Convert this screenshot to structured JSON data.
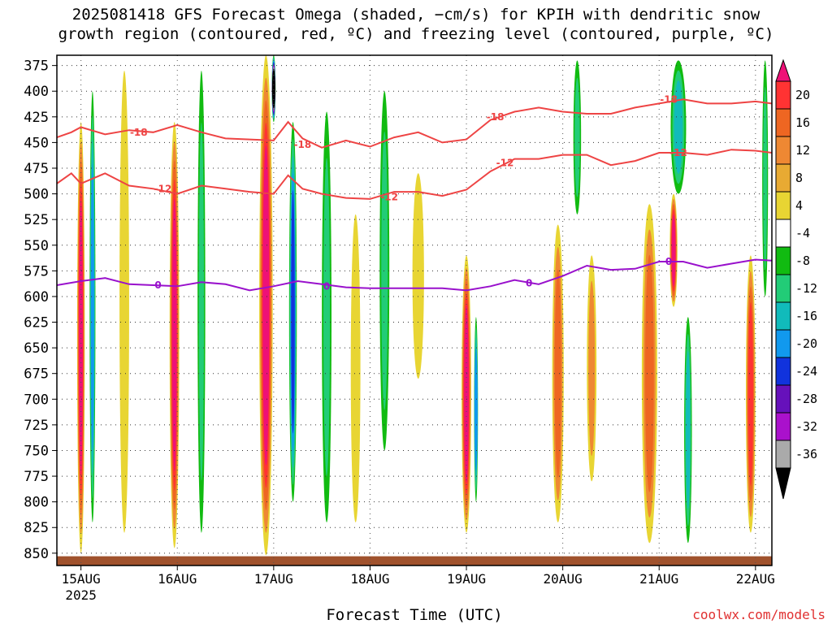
{
  "title_lines": [
    "2025081418 GFS Forecast Omega (shaded, −cm/s) for KPIH with dendritic snow",
    "growth region (contoured, red, ºC) and freezing level (contoured, purple, ºC)"
  ],
  "credit": "coolwx.com/models",
  "chart_data": {
    "type": "heatmap",
    "title": "2025081418 GFS Forecast Omega (shaded, −cm/s) for KPIH with dendritic snow growth region (contoured, red, ºC) and freezing level (contoured, purple, ºC)",
    "xlabel": "Forecast Time (UTC)",
    "ylabel": "",
    "x_ticks": [
      "15AUG",
      "16AUG",
      "17AUG",
      "18AUG",
      "19AUG",
      "20AUG",
      "21AUG",
      "22AUG"
    ],
    "x_subtick_label": "2025",
    "x_range_days": [
      -0.25,
      7.17
    ],
    "y_ticks": [
      375,
      400,
      425,
      450,
      475,
      500,
      525,
      550,
      575,
      600,
      625,
      650,
      675,
      700,
      725,
      750,
      775,
      800,
      825,
      850
    ],
    "y_range_hpa": [
      365,
      862
    ],
    "grid": "dotted",
    "colorbar": {
      "ticks": [
        20,
        16,
        12,
        8,
        4,
        -4,
        -8,
        -12,
        -16,
        -20,
        -24,
        -28,
        -32,
        -36
      ],
      "colors": [
        "#ee1177",
        "#ff3333",
        "#ee6622",
        "#ee8833",
        "#e8aa33",
        "#e8d533",
        "#ffffff",
        "#11bb11",
        "#22cc77",
        "#11bbbb",
        "#1199ee",
        "#1133dd",
        "#6611bb",
        "#aa11cc",
        "#aaaaaa",
        "#000000"
      ]
    },
    "contour_labels": {
      "dgz_minus18": "-18",
      "dgz_minus12": "-12",
      "freezing": "0"
    },
    "contours": [
      {
        "label": "-18",
        "color": "#ee4444",
        "points": [
          [
            -0.25,
            445
          ],
          [
            -0.1,
            440
          ],
          [
            0,
            435
          ],
          [
            0.25,
            442
          ],
          [
            0.5,
            438
          ],
          [
            0.75,
            440
          ],
          [
            1,
            433
          ],
          [
            1.25,
            440
          ],
          [
            1.5,
            446
          ],
          [
            1.75,
            447
          ],
          [
            2,
            448
          ],
          [
            2.15,
            430
          ],
          [
            2.3,
            446
          ],
          [
            2.5,
            455
          ],
          [
            2.75,
            448
          ],
          [
            3,
            454
          ],
          [
            3.25,
            445
          ],
          [
            3.5,
            440
          ],
          [
            3.75,
            450
          ],
          [
            4,
            447
          ],
          [
            4.25,
            428
          ],
          [
            4.5,
            420
          ],
          [
            4.75,
            416
          ],
          [
            5,
            420
          ],
          [
            5.25,
            422
          ],
          [
            5.5,
            422
          ],
          [
            5.75,
            416
          ],
          [
            6,
            412
          ],
          [
            6.25,
            408
          ],
          [
            6.5,
            412
          ],
          [
            6.75,
            412
          ],
          [
            7,
            410
          ],
          [
            7.17,
            412
          ]
        ]
      },
      {
        "label": "-12",
        "color": "#ee4444",
        "points": [
          [
            -0.25,
            490
          ],
          [
            -0.1,
            480
          ],
          [
            0,
            490
          ],
          [
            0.25,
            480
          ],
          [
            0.5,
            492
          ],
          [
            0.75,
            495
          ],
          [
            1,
            500
          ],
          [
            1.25,
            492
          ],
          [
            1.5,
            495
          ],
          [
            1.75,
            498
          ],
          [
            2,
            500
          ],
          [
            2.15,
            482
          ],
          [
            2.3,
            495
          ],
          [
            2.5,
            500
          ],
          [
            2.75,
            504
          ],
          [
            3,
            505
          ],
          [
            3.25,
            498
          ],
          [
            3.5,
            498
          ],
          [
            3.75,
            502
          ],
          [
            4,
            496
          ],
          [
            4.25,
            478
          ],
          [
            4.5,
            466
          ],
          [
            4.75,
            466
          ],
          [
            5,
            462
          ],
          [
            5.25,
            462
          ],
          [
            5.5,
            472
          ],
          [
            5.75,
            468
          ],
          [
            6,
            460
          ],
          [
            6.25,
            460
          ],
          [
            6.5,
            462
          ],
          [
            6.75,
            457
          ],
          [
            7,
            458
          ],
          [
            7.17,
            460
          ]
        ]
      },
      {
        "label": "0",
        "color": "#9911cc",
        "points": [
          [
            -0.25,
            589
          ],
          [
            0,
            585
          ],
          [
            0.25,
            582
          ],
          [
            0.5,
            588
          ],
          [
            0.75,
            589
          ],
          [
            1,
            590
          ],
          [
            1.25,
            586
          ],
          [
            1.5,
            588
          ],
          [
            1.75,
            594
          ],
          [
            2,
            590
          ],
          [
            2.25,
            585
          ],
          [
            2.5,
            588
          ],
          [
            2.75,
            591
          ],
          [
            3,
            592
          ],
          [
            3.25,
            592
          ],
          [
            3.5,
            592
          ],
          [
            3.75,
            592
          ],
          [
            4,
            594
          ],
          [
            4.25,
            590
          ],
          [
            4.5,
            584
          ],
          [
            4.75,
            588
          ],
          [
            5,
            580
          ],
          [
            5.25,
            570
          ],
          [
            5.5,
            574
          ],
          [
            5.75,
            573
          ],
          [
            6,
            566
          ],
          [
            6.25,
            566
          ],
          [
            6.5,
            572
          ],
          [
            6.75,
            568
          ],
          [
            7,
            564
          ],
          [
            7.17,
            565
          ]
        ]
      }
    ],
    "omega_features": [
      {
        "x": 0.0,
        "p_top": 430,
        "p_bot": 850,
        "halfwidth": 0.04,
        "max": 20
      },
      {
        "x": 0.12,
        "p_top": 400,
        "p_bot": 820,
        "halfwidth": 0.03,
        "max": -16
      },
      {
        "x": 0.45,
        "p_top": 380,
        "p_bot": 830,
        "halfwidth": 0.05,
        "max": 6
      },
      {
        "x": 0.97,
        "p_top": 430,
        "p_bot": 845,
        "halfwidth": 0.05,
        "max": 20
      },
      {
        "x": 1.25,
        "p_top": 380,
        "p_bot": 830,
        "halfwidth": 0.04,
        "max": -8
      },
      {
        "x": 1.92,
        "p_top": 365,
        "p_bot": 852,
        "halfwidth": 0.07,
        "max": 20
      },
      {
        "x": 2.0,
        "p_top": 365,
        "p_bot": 430,
        "halfwidth": 0.02,
        "max": -36
      },
      {
        "x": 2.2,
        "p_top": 430,
        "p_bot": 800,
        "halfwidth": 0.04,
        "max": -20
      },
      {
        "x": 2.55,
        "p_top": 420,
        "p_bot": 820,
        "halfwidth": 0.05,
        "max": -8
      },
      {
        "x": 2.85,
        "p_top": 520,
        "p_bot": 820,
        "halfwidth": 0.05,
        "max": 6
      },
      {
        "x": 3.15,
        "p_top": 400,
        "p_bot": 750,
        "halfwidth": 0.05,
        "max": -8
      },
      {
        "x": 3.5,
        "p_top": 480,
        "p_bot": 680,
        "halfwidth": 0.06,
        "max": 5
      },
      {
        "x": 4.0,
        "p_top": 560,
        "p_bot": 830,
        "halfwidth": 0.05,
        "max": 20
      },
      {
        "x": 4.1,
        "p_top": 620,
        "p_bot": 800,
        "halfwidth": 0.02,
        "max": -16
      },
      {
        "x": 4.95,
        "p_top": 530,
        "p_bot": 820,
        "halfwidth": 0.06,
        "max": 12
      },
      {
        "x": 5.3,
        "p_top": 560,
        "p_bot": 780,
        "halfwidth": 0.05,
        "max": 8
      },
      {
        "x": 5.15,
        "p_top": 370,
        "p_bot": 520,
        "halfwidth": 0.04,
        "max": -8
      },
      {
        "x": 5.9,
        "p_top": 510,
        "p_bot": 840,
        "halfwidth": 0.08,
        "max": 12
      },
      {
        "x": 6.15,
        "p_top": 500,
        "p_bot": 610,
        "halfwidth": 0.04,
        "max": 20
      },
      {
        "x": 6.2,
        "p_top": 370,
        "p_bot": 500,
        "halfwidth": 0.08,
        "max": -12
      },
      {
        "x": 6.3,
        "p_top": 620,
        "p_bot": 840,
        "halfwidth": 0.04,
        "max": -12
      },
      {
        "x": 6.95,
        "p_top": 560,
        "p_bot": 830,
        "halfwidth": 0.05,
        "max": 16
      },
      {
        "x": 7.1,
        "p_top": 370,
        "p_bot": 600,
        "halfwidth": 0.03,
        "max": -8
      }
    ],
    "terrain_pressure_hpa": 853
  }
}
